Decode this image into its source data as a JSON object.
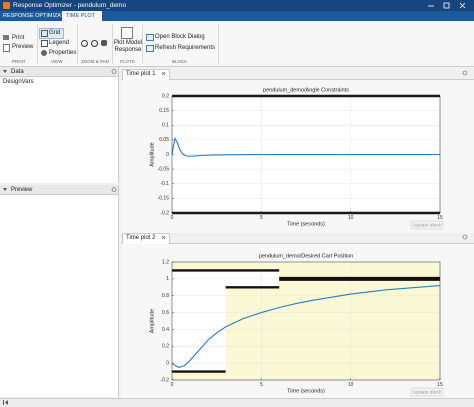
{
  "window": {
    "title": "Response Optimizer - pendulum_demo"
  },
  "tabs": [
    "RESPONSE OPTIMIZATION",
    "TIME PLOT"
  ],
  "toolstrip": {
    "print": {
      "label": "PRINT",
      "buttons": [
        "Print",
        "Preview"
      ]
    },
    "view": {
      "label": "VIEW",
      "buttons": [
        "Grid",
        "Legend",
        "Properties"
      ]
    },
    "zoom": {
      "label": "ZOOM & PAN"
    },
    "plots": {
      "label": "PLOTS",
      "buttons": [
        "Plot Model Response"
      ]
    },
    "block": {
      "label": "BLOCK",
      "buttons": [
        "Open Block Dialog",
        "Refresh Requirements"
      ]
    }
  },
  "panels": {
    "data": {
      "title": "Data",
      "items": [
        "DesignVars"
      ]
    },
    "preview": {
      "title": "Preview"
    }
  },
  "plots": [
    {
      "tab": "Time plot 1",
      "title": "pendulum_demo/Angle Constraints",
      "xlabel": "Time (seconds)",
      "ylabel": "Amplitude",
      "xlim": [
        0,
        15
      ],
      "ylim": [
        -0.2,
        0.2
      ],
      "xticks": [
        0,
        5,
        10,
        15
      ],
      "yticks": [
        -0.2,
        -0.15,
        -0.1,
        -0.05,
        0,
        0.05,
        0.1,
        0.15,
        0.2
      ],
      "grid": true,
      "button": "Update block",
      "response": {
        "color": "#2b7bc4",
        "x": [
          0,
          0.08,
          0.17,
          0.3,
          0.45,
          0.6,
          0.8,
          1.0,
          1.3,
          1.7,
          2.2,
          3,
          5,
          8,
          15
        ],
        "y": [
          0,
          0.03,
          0.055,
          0.04,
          0.015,
          0.002,
          -0.005,
          -0.006,
          -0.005,
          -0.003,
          -0.002,
          -0.001,
          0,
          0,
          0
        ]
      },
      "upper_bounds": [
        {
          "x": [
            0,
            15
          ],
          "y": 0.2
        }
      ],
      "lower_bounds": [
        {
          "x": [
            0,
            15
          ],
          "y": -0.2
        }
      ]
    },
    {
      "tab": "Time plot 2",
      "title": "pendulum_demo/Desired Cart Position",
      "xlabel": "Time (seconds)",
      "ylabel": "Amplitude",
      "xlim": [
        0,
        15
      ],
      "ylim": [
        -0.2,
        1.2
      ],
      "xticks": [
        0,
        5,
        10,
        15
      ],
      "yticks": [
        -0.2,
        0,
        0.2,
        0.4,
        0.6,
        0.8,
        1,
        1.2
      ],
      "grid": true,
      "button": "Update block",
      "response": {
        "color": "#2b7bc4",
        "x": [
          0,
          0.2,
          0.4,
          0.7,
          1,
          1.5,
          2,
          2.5,
          3,
          4,
          5,
          6,
          7,
          8,
          10,
          12,
          15
        ],
        "y": [
          0,
          -0.03,
          -0.05,
          -0.03,
          0.03,
          0.15,
          0.27,
          0.36,
          0.43,
          0.53,
          0.6,
          0.66,
          0.71,
          0.75,
          0.82,
          0.87,
          0.92
        ]
      },
      "upper_bounds": [
        {
          "x": [
            0,
            6
          ],
          "y": 1.1
        },
        {
          "x": [
            6,
            15
          ],
          "y": 1.01
        }
      ],
      "lower_bounds": [
        {
          "x": [
            0,
            3
          ],
          "y": -0.1
        },
        {
          "x": [
            3,
            6
          ],
          "y": 0.9
        },
        {
          "x": [
            6,
            15
          ],
          "y": 0.99
        }
      ]
    }
  ]
}
